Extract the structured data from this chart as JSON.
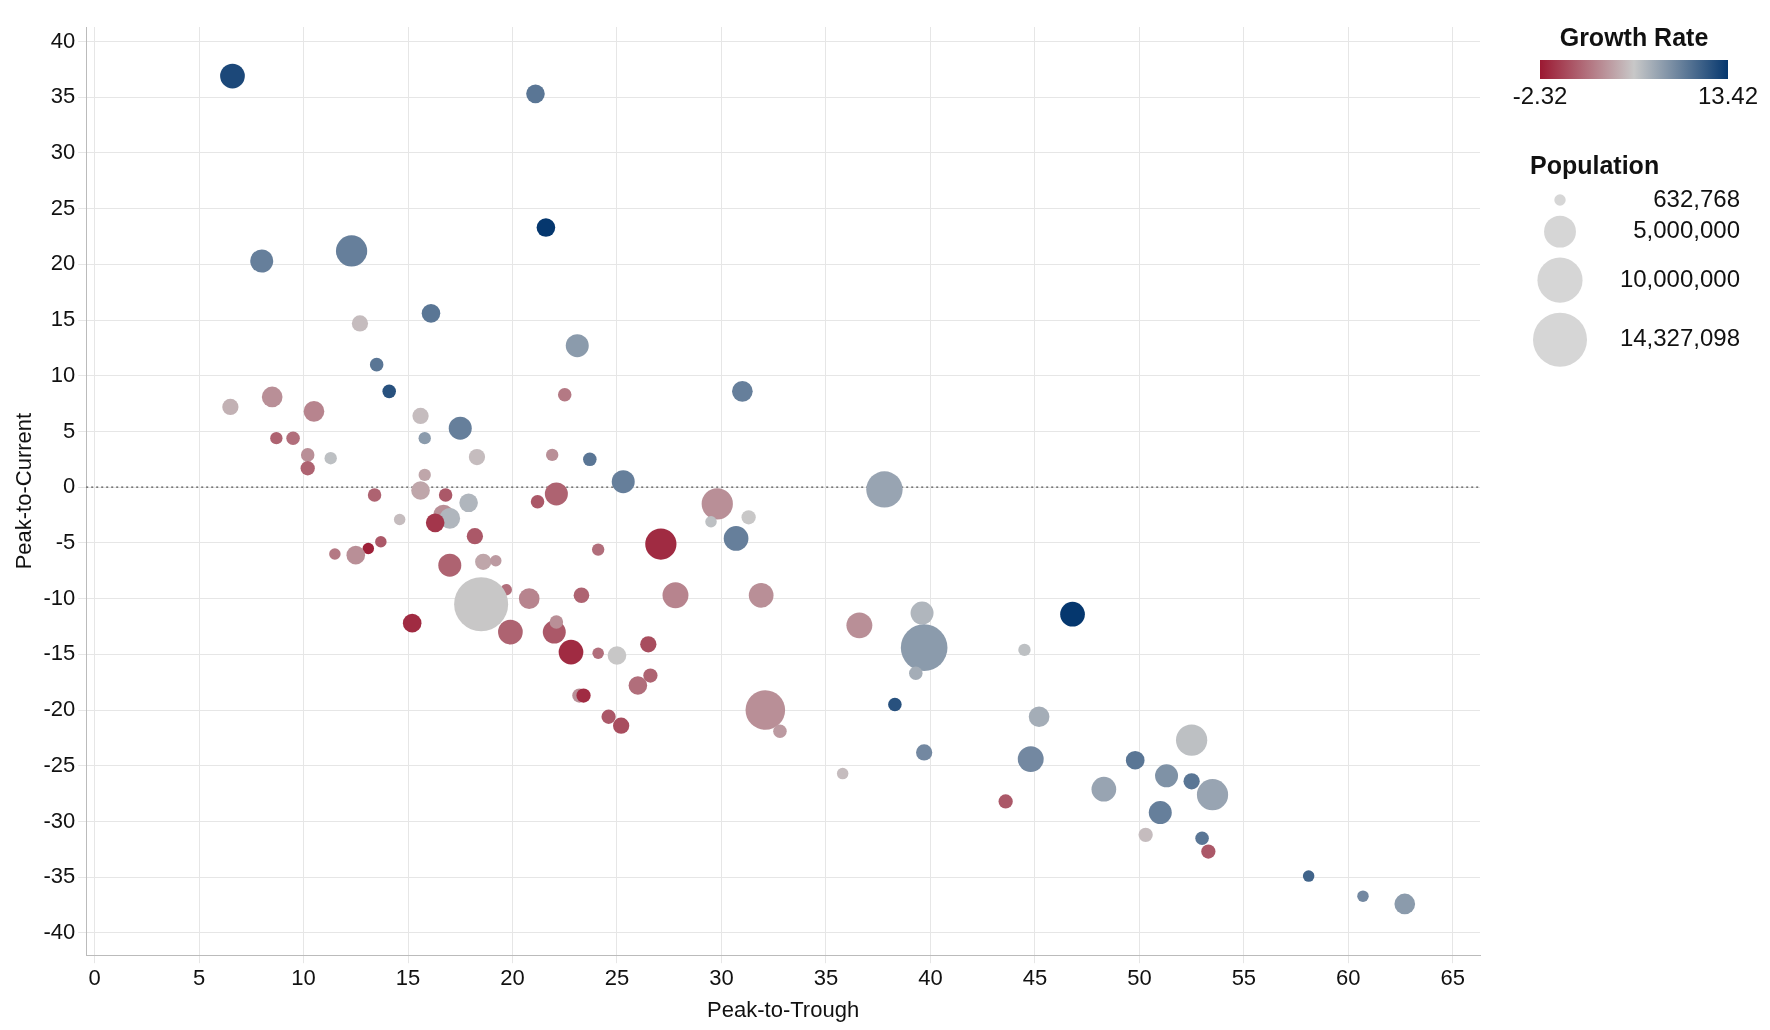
{
  "chart_data": {
    "type": "bubble",
    "xlabel": "Peak-to-Trough",
    "ylabel": "Peak-to-Current",
    "clabel": "Growth Rate",
    "legend_title": "Population",
    "xlim": [
      -0.4,
      66.3
    ],
    "xticks": [
      0,
      5,
      10,
      15,
      20,
      25,
      30,
      35,
      40,
      45,
      50,
      55,
      60,
      65
    ],
    "ylim": [
      -42,
      41.3
    ],
    "yticks": [
      -40,
      -35,
      -30,
      -25,
      -20,
      -15,
      -10,
      -5,
      0,
      5,
      10,
      15,
      20,
      25,
      30,
      35,
      40
    ],
    "grid": true,
    "clim": [
      -2.32,
      13.42
    ],
    "cticks": [
      -2.32,
      13.42
    ],
    "size_legend": [
      {
        "value": 632768,
        "label": "632,768"
      },
      {
        "value": 5000000,
        "label": "5,000,000"
      },
      {
        "value": 10000000,
        "label": "10,000,000"
      },
      {
        "value": 14327098,
        "label": "14,327,098"
      }
    ],
    "ref_lines": [
      {
        "axis": "y",
        "value": 0,
        "color": "#555555",
        "line_style": "dotted"
      }
    ],
    "x": [
      6.6,
      21.1,
      21.6,
      8.0,
      12.3,
      16.1,
      12.7,
      23.1,
      13.5,
      14.1,
      31.0,
      6.5,
      8.5,
      10.5,
      22.5,
      15.6,
      17.5,
      8.7,
      9.5,
      15.8,
      10.2,
      11.3,
      10.2,
      18.3,
      21.9,
      23.7,
      15.8,
      25.3,
      37.8,
      15.6,
      13.4,
      16.8,
      17.9,
      21.2,
      22.1,
      29.8,
      16.7,
      17.0,
      16.3,
      14.6,
      29.5,
      31.3,
      18.2,
      13.7,
      13.1,
      11.5,
      12.5,
      27.1,
      30.7,
      24.1,
      17.0,
      18.6,
      19.2,
      19.7,
      18.5,
      20.8,
      23.3,
      27.8,
      31.9,
      15.2,
      19.9,
      22.0,
      22.1,
      22.8,
      24.1,
      25.0,
      26.5,
      26.6,
      26.0,
      23.2,
      23.4,
      24.6,
      25.2,
      32.1,
      32.8,
      36.6,
      39.6,
      39.7,
      39.3,
      38.3,
      39.7,
      35.8,
      43.6,
      46.8,
      44.5,
      45.2,
      44.8,
      48.3,
      49.8,
      51.3,
      52.5,
      52.5,
      53.5,
      51.0,
      50.3,
      53.0,
      53.3,
      58.1,
      60.7,
      62.7
    ],
    "values": [
      36.9,
      35.3,
      23.3,
      20.3,
      21.2,
      15.6,
      14.7,
      12.7,
      11.0,
      8.6,
      8.6,
      7.2,
      8.1,
      6.8,
      8.3,
      6.4,
      5.3,
      4.4,
      4.4,
      4.4,
      2.9,
      2.6,
      1.7,
      2.7,
      2.9,
      2.5,
      1.1,
      0.5,
      -0.2,
      -0.3,
      -0.7,
      -0.7,
      -1.4,
      -1.3,
      -0.6,
      -1.5,
      -2.5,
      -2.8,
      -3.2,
      -2.9,
      -3.1,
      -2.7,
      -4.4,
      -4.9,
      -5.5,
      -6.0,
      -6.1,
      -5.1,
      -4.6,
      -5.6,
      -7.0,
      -6.7,
      -6.6,
      -9.2,
      -10.5,
      -10.0,
      -9.7,
      -9.7,
      -9.7,
      -12.2,
      -13.0,
      -13.0,
      -12.1,
      -14.8,
      -14.9,
      -15.1,
      -14.1,
      -16.9,
      -17.8,
      -18.7,
      -18.7,
      -20.6,
      -21.4,
      -20.0,
      -21.9,
      -12.4,
      -11.3,
      -14.4,
      -16.7,
      -19.5,
      -23.8,
      -25.7,
      -28.2,
      -11.4,
      -14.6,
      -20.6,
      -24.4,
      -27.1,
      -24.5,
      -25.9,
      -26.4,
      -22.7,
      -27.6,
      -29.2,
      -31.2,
      -31.5,
      -32.7,
      -34.9,
      -36.7,
      -37.4
    ],
    "sizes": [
      3000000,
      1700000,
      1700000,
      2600000,
      4800000,
      1700000,
      1300000,
      2600000,
      900000,
      900000,
      2100000,
      1300000,
      2100000,
      2100000,
      900000,
      1300000,
      2600000,
      750000,
      900000,
      750000,
      900000,
      750000,
      1000000,
      1300000,
      750000,
      900000,
      750000,
      2600000,
      6500000,
      1700000,
      900000,
      900000,
      1700000,
      900000,
      2600000,
      4800000,
      2100000,
      2100000,
      1700000,
      650000,
      650000,
      1000000,
      1300000,
      650000,
      650000,
      650000,
      1700000,
      4800000,
      3000000,
      750000,
      2600000,
      1300000,
      650000,
      650000,
      14327098,
      2100000,
      1200000,
      3300000,
      3000000,
      1700000,
      3000000,
      2600000,
      900000,
      3000000,
      650000,
      1700000,
      1300000,
      1000000,
      1700000,
      1000000,
      1000000,
      1000000,
      1300000,
      7700000,
      900000,
      3300000,
      2600000,
      10700000,
      900000,
      900000,
      1300000,
      650000,
      1000000,
      3000000,
      750000,
      2100000,
      3300000,
      3000000,
      1700000,
      2600000,
      1300000,
      4800000,
      4800000,
      2600000,
      1000000,
      900000,
      1000000,
      650000,
      650000,
      2100000
    ],
    "cvalues": [
      12.5,
      10,
      13.4,
      9.5,
      9.5,
      10,
      5,
      8,
      10,
      12,
      9.5,
      4.5,
      3,
      2.5,
      2,
      5,
      9.5,
      1,
      1.5,
      8,
      3,
      6,
      1,
      5,
      3,
      10,
      4,
      9.5,
      7.5,
      4,
      1,
      0.5,
      6.5,
      0.5,
      1,
      3,
      3,
      6.5,
      -1,
      5,
      6,
      5.5,
      0.5,
      0.5,
      -2,
      2,
      3,
      -1.5,
      9.5,
      1.5,
      1,
      4,
      3.5,
      1.5,
      5.5,
      2.5,
      1,
      2.5,
      3,
      -1.5,
      1,
      0.5,
      3,
      -1.5,
      1.5,
      5.5,
      0,
      1,
      1.5,
      3,
      -1.5,
      0.5,
      0,
      3,
      3.5,
      3,
      6.5,
      8,
      7,
      12,
      9,
      5,
      0.5,
      13.4,
      6,
      7,
      9,
      7.5,
      10,
      8.5,
      10,
      6,
      7.5,
      9.5,
      5,
      10,
      0.5,
      11,
      9,
      8
    ]
  }
}
